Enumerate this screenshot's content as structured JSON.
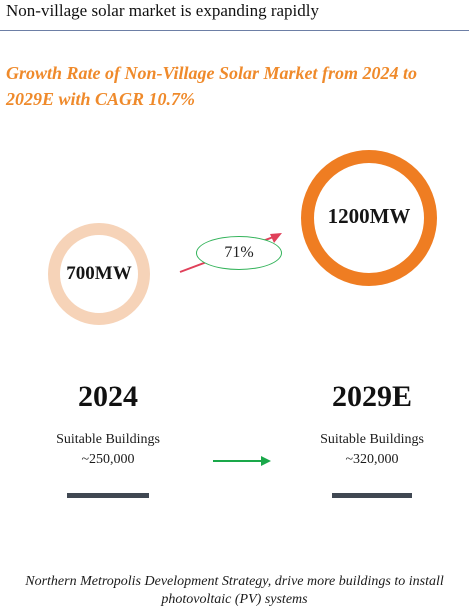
{
  "header": {
    "title": "Non-village solar market is expanding rapidly"
  },
  "subtitle": "Growth Rate of Non-Village Solar Market from 2024 to 2029E with CAGR 10.7%",
  "colors": {
    "accent_orange": "#ef7d22",
    "light_peach": "#f6d3b8",
    "growth_green": "#33b35a",
    "growth_arrow_red": "#e0405a",
    "bar_dark": "#404852"
  },
  "capacity": {
    "y2024": "700MW",
    "y2029": "1200MW",
    "growth_label": "71%"
  },
  "periods": [
    {
      "year": "2024",
      "buildings_label": "Suitable Buildings",
      "buildings_count": "~250,000"
    },
    {
      "year": "2029E",
      "buildings_label": "Suitable Buildings",
      "buildings_count": "~320,000"
    }
  ],
  "footer": "Northern Metropolis Development Strategy, drive more buildings to install photovoltaic (PV) systems"
}
